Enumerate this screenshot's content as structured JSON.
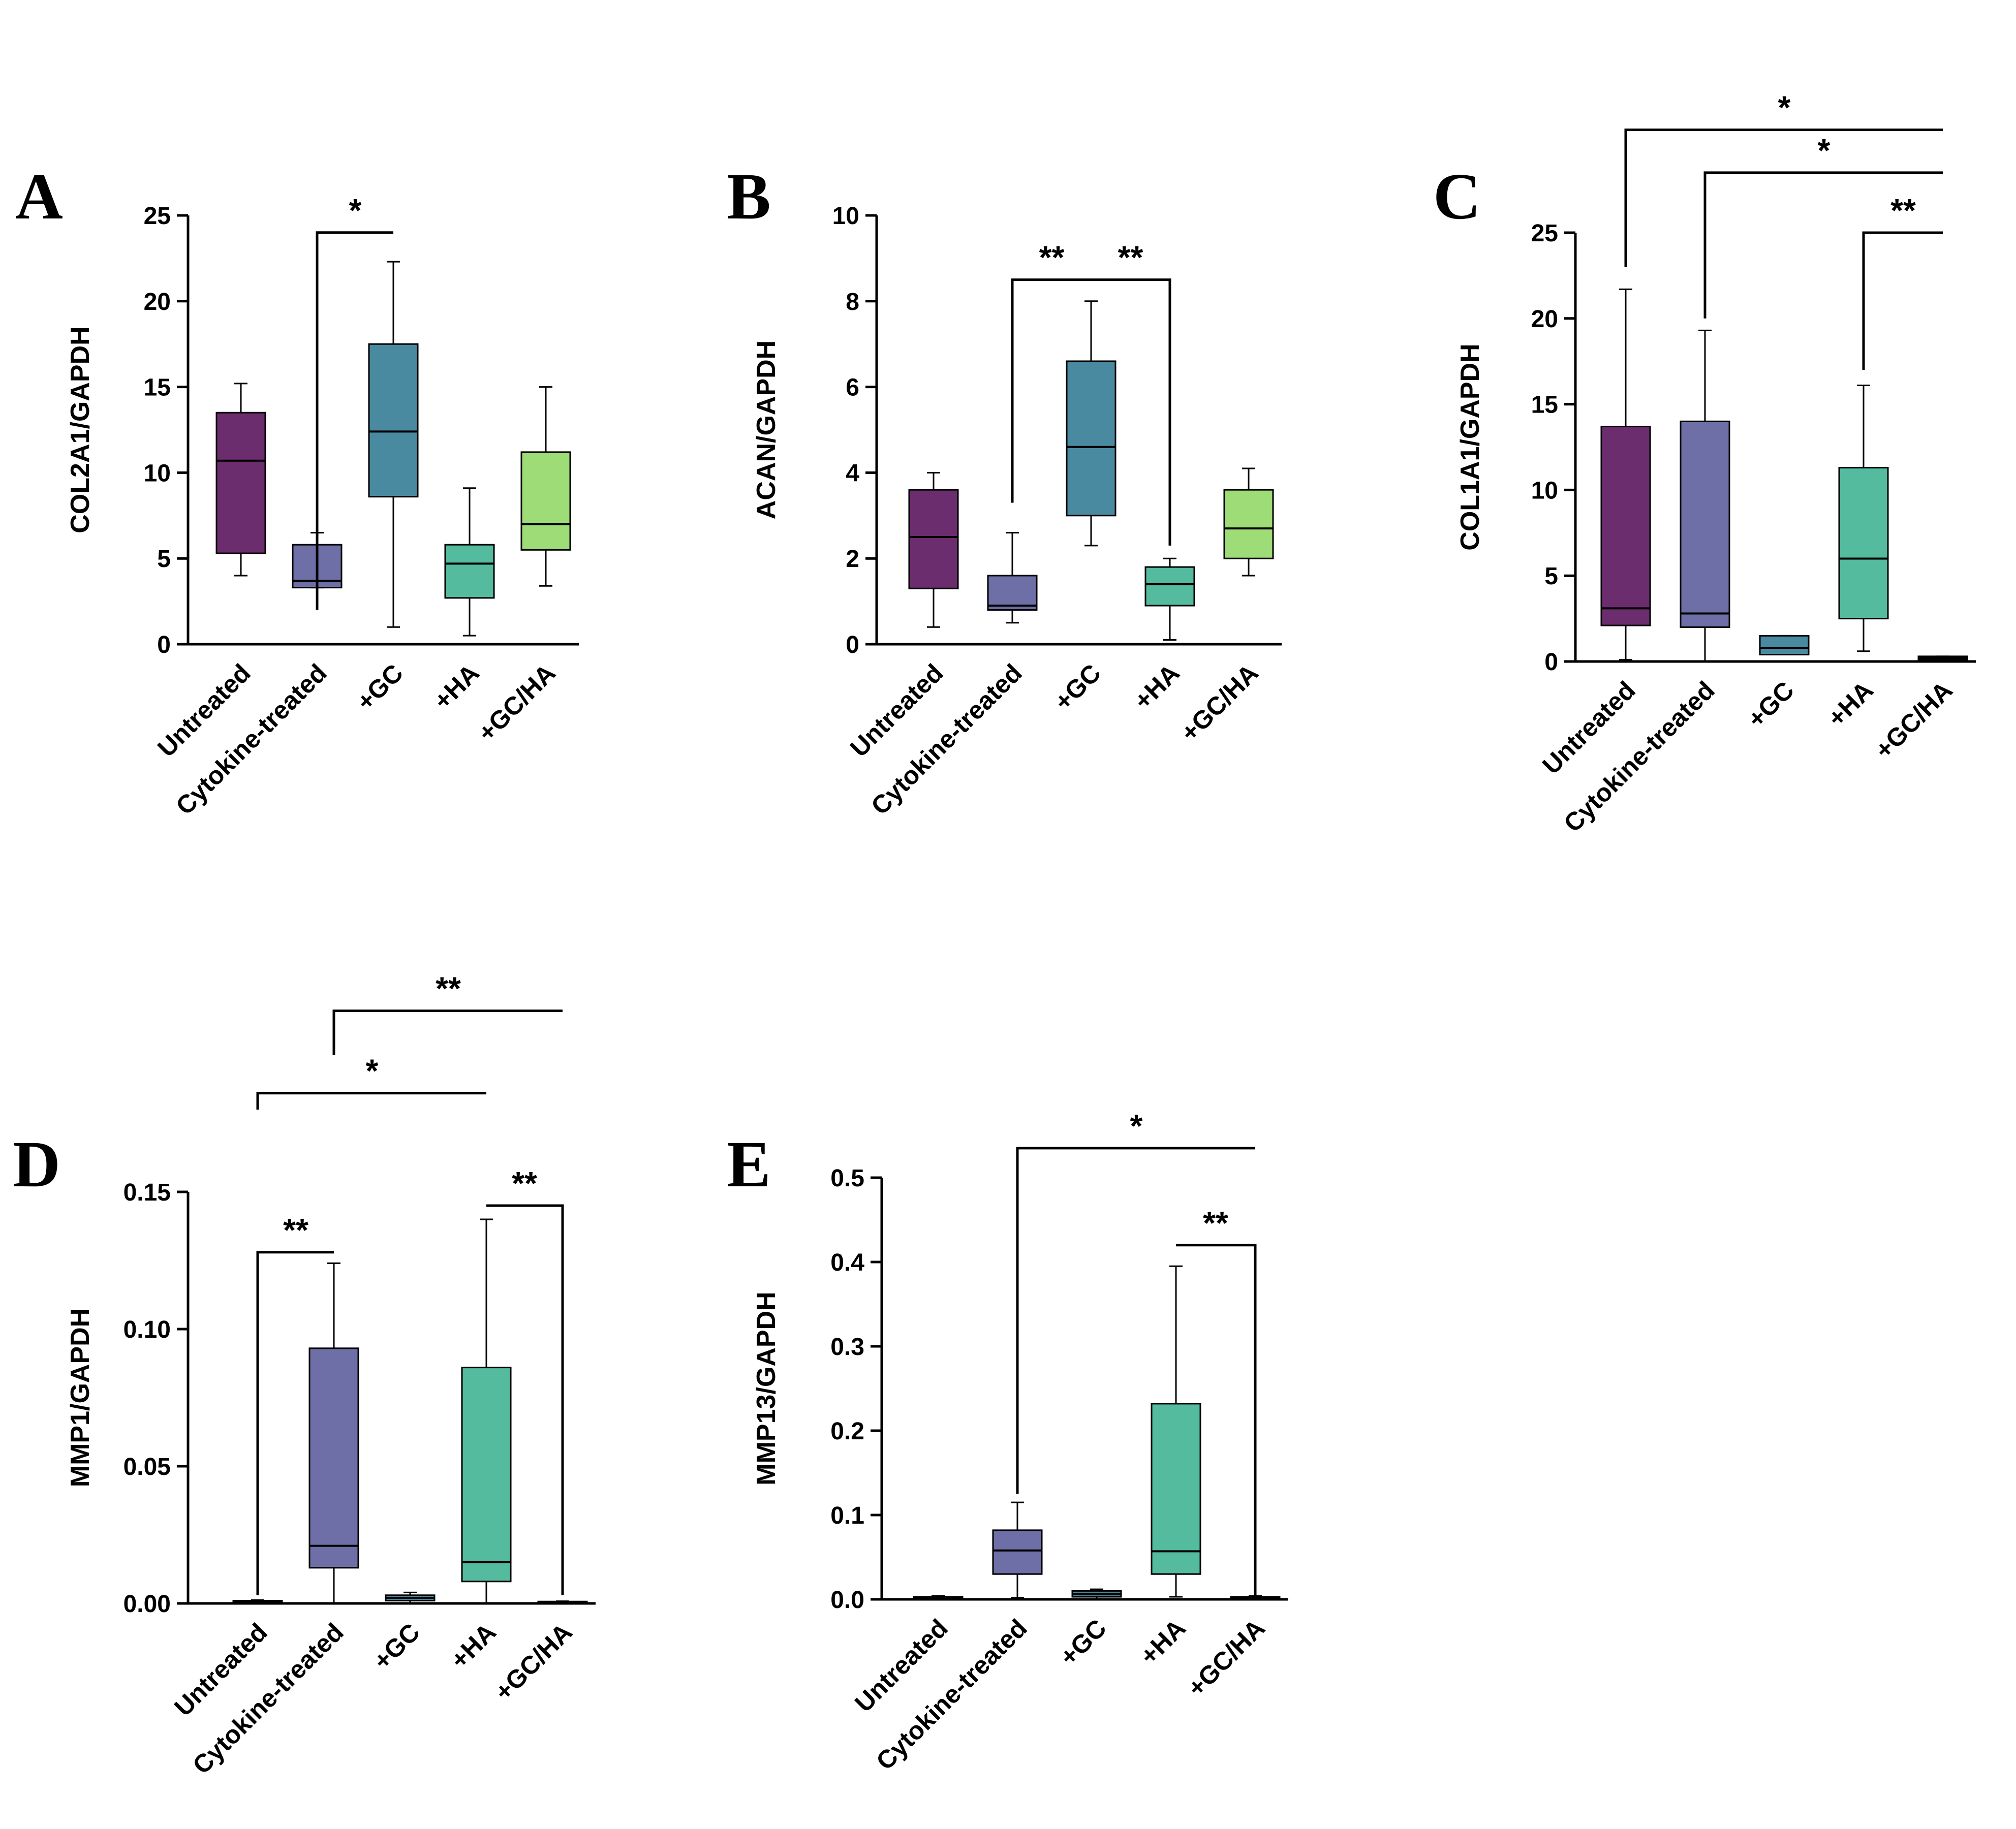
{
  "figure": {
    "categories": [
      "Untreated",
      "Cytokine-treated",
      "+GC",
      "+HA",
      "+GC/HA"
    ],
    "colors": [
      "#6b2d6e",
      "#6e6fa6",
      "#4a8aa0",
      "#55bb9e",
      "#9edc78"
    ]
  },
  "chart_data": [
    {
      "type": "box",
      "panel": "A",
      "ylabel": "COL2A1/GAPDH",
      "ylim": [
        0,
        25
      ],
      "yticks": [
        0,
        5,
        10,
        15,
        20,
        25
      ],
      "ytick_labels": [
        "0",
        "5",
        "10",
        "15",
        "20",
        "25"
      ],
      "categories": [
        "Untreated",
        "Cytokine-treated",
        "+GC",
        "+HA",
        "+GC/HA"
      ],
      "boxes": [
        {
          "min": 4.0,
          "q1": 5.3,
          "median": 10.7,
          "q3": 13.5,
          "max": 15.2
        },
        {
          "min": 3.3,
          "q1": 3.3,
          "median": 3.7,
          "q3": 5.8,
          "max": 6.5
        },
        {
          "min": 1.0,
          "q1": 8.6,
          "median": 12.4,
          "q3": 17.5,
          "max": 22.3
        },
        {
          "min": 0.5,
          "q1": 2.7,
          "median": 4.7,
          "q3": 5.8,
          "max": 9.1
        },
        {
          "min": 3.4,
          "q1": 5.5,
          "median": 7.0,
          "q3": 11.2,
          "max": 15.0
        }
      ],
      "significance": [
        {
          "from": 1,
          "to": 2,
          "left_at": 2.0,
          "right_at": 24.0,
          "label": "*"
        }
      ]
    },
    {
      "type": "box",
      "panel": "B",
      "ylabel": "ACAN/GAPDH",
      "ylim": [
        0,
        10
      ],
      "yticks": [
        0,
        2,
        4,
        6,
        8,
        10
      ],
      "ytick_labels": [
        "0",
        "2",
        "4",
        "6",
        "8",
        "10"
      ],
      "categories": [
        "Untreated",
        "Cytokine-treated",
        "+GC",
        "+HA",
        "+GC/HA"
      ],
      "boxes": [
        {
          "min": 0.4,
          "q1": 1.3,
          "median": 2.5,
          "q3": 3.6,
          "max": 4.0
        },
        {
          "min": 0.5,
          "q1": 0.8,
          "median": 0.9,
          "q3": 1.6,
          "max": 2.6
        },
        {
          "min": 2.3,
          "q1": 3.0,
          "median": 4.6,
          "q3": 6.6,
          "max": 8.0
        },
        {
          "min": 0.1,
          "q1": 0.9,
          "median": 1.4,
          "q3": 1.8,
          "max": 2.0
        },
        {
          "min": 1.6,
          "q1": 2.0,
          "median": 2.7,
          "q3": 3.6,
          "max": 4.1
        }
      ],
      "significance": [
        {
          "from": 1,
          "to": 2,
          "left_at": 3.3,
          "right_at": 8.5,
          "label": "**"
        },
        {
          "from": 2,
          "to": 3,
          "left_at": 8.5,
          "right_at": 2.3,
          "label": "**"
        }
      ]
    },
    {
      "type": "box",
      "panel": "C",
      "ylabel": "COL1A1/GAPDH",
      "ylim": [
        0,
        25
      ],
      "yticks": [
        0,
        5,
        10,
        15,
        20,
        25
      ],
      "ytick_labels": [
        "0",
        "5",
        "10",
        "15",
        "20",
        "25"
      ],
      "categories": [
        "Untreated",
        "Cytokine-treated",
        "+GC",
        "+HA",
        "+GC/HA"
      ],
      "boxes": [
        {
          "min": 0.1,
          "q1": 2.1,
          "median": 3.1,
          "q3": 13.7,
          "max": 21.7
        },
        {
          "min": 0.0,
          "q1": 2.0,
          "median": 2.8,
          "q3": 14.0,
          "max": 19.3
        },
        {
          "min": 0.4,
          "q1": 0.4,
          "median": 0.8,
          "q3": 1.5,
          "max": 1.5
        },
        {
          "min": 0.6,
          "q1": 2.5,
          "median": 6.0,
          "q3": 11.3,
          "max": 16.1
        },
        {
          "min": 0.05,
          "q1": 0.1,
          "median": 0.2,
          "q3": 0.3,
          "max": 0.3
        }
      ],
      "significance": [
        {
          "from": 0,
          "to": 4,
          "left_at": 23.0,
          "right_at": 31.0,
          "label": "*"
        },
        {
          "from": 1,
          "to": 4,
          "left_at": 20.0,
          "right_at": 28.5,
          "label": "*"
        },
        {
          "from": 3,
          "to": 4,
          "left_at": 17.0,
          "right_at": 25.0,
          "label": "**"
        }
      ]
    },
    {
      "type": "box",
      "panel": "D",
      "ylabel": "MMP1/GAPDH",
      "ylim": [
        0,
        0.15
      ],
      "yticks": [
        0,
        0.05,
        0.1,
        0.15
      ],
      "ytick_labels": [
        "0.00",
        "0.05",
        "0.10",
        "0.15"
      ],
      "categories": [
        "Untreated",
        "Cytokine-treated",
        "+GC",
        "+HA",
        "+GC/HA"
      ],
      "boxes": [
        {
          "min": 0.0,
          "q1": 0.0003,
          "median": 0.0006,
          "q3": 0.001,
          "max": 0.0012
        },
        {
          "min": 0.0,
          "q1": 0.013,
          "median": 0.021,
          "q3": 0.093,
          "max": 0.124
        },
        {
          "min": 0.0,
          "q1": 0.001,
          "median": 0.002,
          "q3": 0.003,
          "max": 0.004
        },
        {
          "min": 0.0,
          "q1": 0.008,
          "median": 0.015,
          "q3": 0.086,
          "max": 0.14
        },
        {
          "min": 0.0,
          "q1": 0.0003,
          "median": 0.0005,
          "q3": 0.0007,
          "max": 0.0008
        }
      ],
      "significance": [
        {
          "from": 0,
          "to": 1,
          "left_at": 0.003,
          "right_at": 0.128,
          "label": "**"
        },
        {
          "from": 3,
          "to": 4,
          "left_at": 0.145,
          "right_at": 0.003,
          "label": "**"
        },
        {
          "from": 0,
          "to": 3,
          "left_at": 0.18,
          "right_at": 0.186,
          "label": "*"
        },
        {
          "from": 1,
          "to": 4,
          "left_at": 0.2,
          "right_at": 0.216,
          "label": "**"
        }
      ]
    },
    {
      "type": "box",
      "panel": "E",
      "ylabel": "MMP13/GAPDH",
      "ylim": [
        0,
        0.5
      ],
      "yticks": [
        0,
        0.1,
        0.2,
        0.3,
        0.4,
        0.5
      ],
      "ytick_labels": [
        "0.0",
        "0.1",
        "0.2",
        "0.3",
        "0.4",
        "0.5"
      ],
      "categories": [
        "Untreated",
        "Cytokine-treated",
        "+GC",
        "+HA",
        "+GC/HA"
      ],
      "boxes": [
        {
          "min": 0.0,
          "q1": 0.001,
          "median": 0.002,
          "q3": 0.003,
          "max": 0.004
        },
        {
          "min": 0.002,
          "q1": 0.03,
          "median": 0.058,
          "q3": 0.082,
          "max": 0.115
        },
        {
          "min": 0.0,
          "q1": 0.003,
          "median": 0.006,
          "q3": 0.01,
          "max": 0.012
        },
        {
          "min": 0.003,
          "q1": 0.03,
          "median": 0.057,
          "q3": 0.232,
          "max": 0.395
        },
        {
          "min": 0.0,
          "q1": 0.001,
          "median": 0.002,
          "q3": 0.003,
          "max": 0.004
        }
      ],
      "significance": [
        {
          "from": 3,
          "to": 4,
          "left_at": 0.42,
          "right_at": 0.005,
          "label": "**"
        },
        {
          "from": 1,
          "to": 4,
          "left_at": 0.125,
          "right_at": 0.535,
          "label": "*"
        }
      ]
    }
  ]
}
